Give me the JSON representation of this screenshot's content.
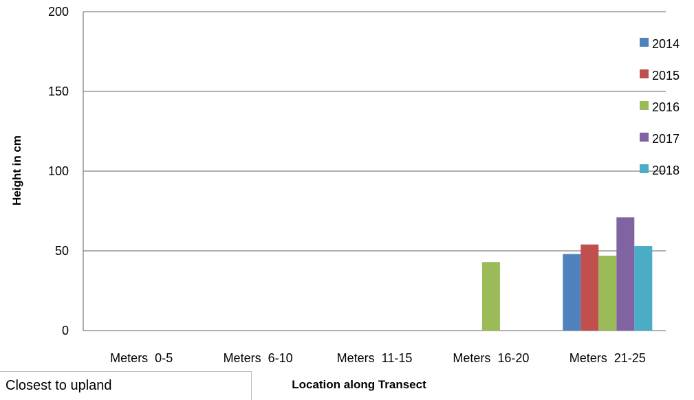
{
  "chart_data": {
    "type": "bar",
    "title": "",
    "xlabel": "Location along Transect",
    "ylabel": "Height in cm",
    "ylim": [
      0,
      200
    ],
    "yticks": [
      "0",
      "50",
      "100",
      "150",
      "200"
    ],
    "grid": true,
    "legend_position": "right",
    "categories": [
      "Meters  0-5",
      "Meters  6-10",
      "Meters  11-15",
      "Meters  16-20",
      "Meters  21-25"
    ],
    "series": [
      {
        "name": "2014",
        "color": "#4f81bd",
        "values": [
          0,
          0,
          0,
          0,
          48
        ]
      },
      {
        "name": "2015",
        "color": "#c0504d",
        "values": [
          0,
          0,
          0,
          0,
          54
        ]
      },
      {
        "name": "2016",
        "color": "#9bbb59",
        "values": [
          0,
          0,
          0,
          43,
          47
        ]
      },
      {
        "name": "2017",
        "color": "#8064a2",
        "values": [
          0,
          0,
          0,
          0,
          71
        ]
      },
      {
        "name": "2018",
        "color": "#4bacc6",
        "values": [
          0,
          0,
          0,
          0,
          53
        ]
      }
    ]
  },
  "note": {
    "text": "Closest to upland"
  }
}
